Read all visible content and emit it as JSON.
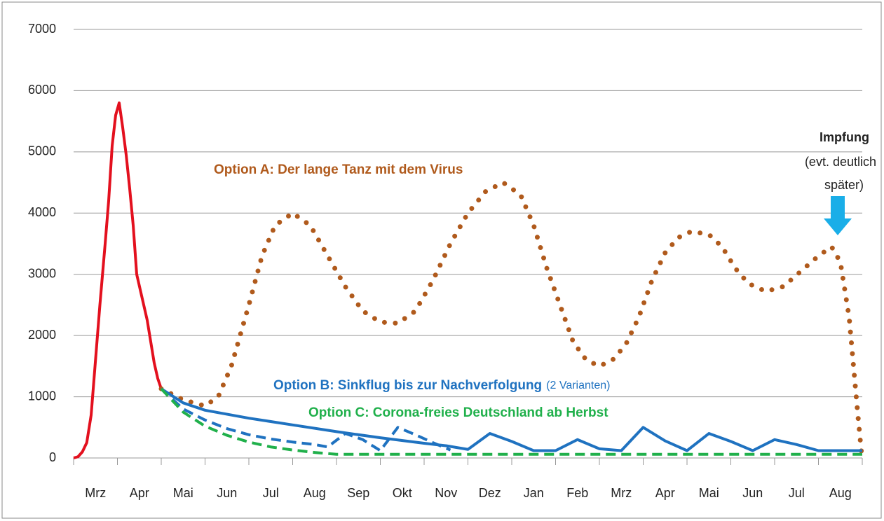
{
  "chart_data": {
    "type": "line",
    "categories": [
      "Mrz",
      "Apr",
      "Mai",
      "Jun",
      "Jul",
      "Aug",
      "Sep",
      "Okt",
      "Nov",
      "Dez",
      "Jan",
      "Feb",
      "Mrz",
      "Apr",
      "Mai",
      "Jun",
      "Jul",
      "Aug"
    ],
    "xlim": [
      0,
      18
    ],
    "xticks": [
      0,
      1,
      2,
      3,
      4,
      5,
      6,
      7,
      8,
      9,
      10,
      11,
      12,
      13,
      14,
      15,
      16,
      17,
      18
    ],
    "ylim": [
      0,
      7000
    ],
    "yticks": [
      0,
      1000,
      2000,
      3000,
      4000,
      5000,
      6000,
      7000
    ],
    "grid": true,
    "series": [
      {
        "color": "#e3101e",
        "style": "solid",
        "x": [
          0,
          0.1,
          0.2,
          0.3,
          0.4,
          0.5,
          0.6,
          0.72,
          0.8,
          0.88,
          0.96,
          1.04,
          1.12,
          1.2,
          1.28,
          1.36,
          1.44,
          1.52,
          1.6,
          1.68,
          1.76,
          1.84,
          1.92,
          2.0
        ],
        "values": [
          0,
          20,
          100,
          250,
          700,
          1600,
          2500,
          3500,
          4200,
          5100,
          5600,
          5800,
          5400,
          4950,
          4400,
          3800,
          3000,
          2750,
          2500,
          2250,
          1900,
          1550,
          1300,
          1130
        ]
      },
      {
        "color": "#b05a1c",
        "style": "dotted",
        "x": [
          2.0,
          2.5,
          3.0,
          3.3,
          3.6,
          4.0,
          4.3,
          4.6,
          5.0,
          5.4,
          5.8,
          6.2,
          6.6,
          7.0,
          7.4,
          7.8,
          8.2,
          8.6,
          9.0,
          9.4,
          9.8,
          10.2,
          10.5,
          10.8,
          11.1,
          11.4,
          11.7,
          12.0,
          12.3,
          12.6,
          12.9,
          13.2,
          13.5,
          13.8,
          14.1,
          14.5,
          14.8,
          15.1,
          15.4,
          15.8,
          16.2,
          16.6,
          17.0,
          17.3,
          17.5,
          17.7,
          17.8,
          17.9,
          17.98
        ],
        "values": [
          1130,
          950,
          850,
          1000,
          1500,
          2500,
          3300,
          3800,
          4000,
          3800,
          3300,
          2800,
          2400,
          2220,
          2200,
          2400,
          2900,
          3500,
          4000,
          4350,
          4500,
          4300,
          3800,
          3100,
          2500,
          1900,
          1600,
          1500,
          1600,
          1850,
          2300,
          2900,
          3350,
          3600,
          3700,
          3650,
          3450,
          3100,
          2850,
          2720,
          2800,
          3050,
          3300,
          3450,
          3200,
          2300,
          1500,
          700,
          100
        ]
      },
      {
        "color": "#1f72c0",
        "style": "solid",
        "x": [
          2.0,
          2.5,
          3.0,
          4.0,
          5.0,
          6.0,
          7.0,
          8.0,
          8.5,
          9.0,
          9.5,
          10.0,
          10.5,
          11.0,
          11.5,
          12.0,
          12.5,
          13.0,
          13.5,
          14.0,
          14.5,
          15.0,
          15.5,
          16.0,
          16.5,
          17.0,
          17.5,
          18.0
        ],
        "values": [
          1130,
          900,
          780,
          650,
          540,
          430,
          330,
          240,
          200,
          140,
          400,
          270,
          120,
          120,
          300,
          150,
          120,
          500,
          280,
          120,
          400,
          270,
          120,
          300,
          220,
          120,
          120,
          120
        ]
      },
      {
        "color": "#1f72c0",
        "style": "dashed",
        "x": [
          2.0,
          2.5,
          3.0,
          3.5,
          4.0,
          4.5,
          5.0,
          5.5,
          5.8,
          6.2,
          6.6,
          7.0,
          7.4,
          7.8,
          8.2,
          8.6
        ],
        "values": [
          1130,
          800,
          620,
          480,
          380,
          310,
          260,
          220,
          180,
          400,
          300,
          120,
          500,
          380,
          250,
          130
        ]
      },
      {
        "color": "#20b04b",
        "style": "dashed",
        "x": [
          2.0,
          2.5,
          3.0,
          3.5,
          4.0,
          4.5,
          5.0,
          5.5,
          6.0,
          18.0
        ],
        "values": [
          1130,
          750,
          520,
          370,
          260,
          180,
          130,
          90,
          60,
          60
        ]
      }
    ],
    "annotations": [
      {
        "text": "Option A: Der lange Tanz mit dem Virus",
        "color": "#b05a1c"
      },
      {
        "text": "Option B: Sinkflug bis zur Nachverfolgung",
        "note": "(2 Varianten)",
        "color": "#1f72c0"
      },
      {
        "text": "Option C: Corona-freies Deutschland ab Herbst",
        "color": "#20b04b"
      },
      {
        "text": "Impfung",
        "lines": [
          "(evt. deutlich",
          "später)"
        ],
        "color": "#1aaee8"
      }
    ]
  }
}
